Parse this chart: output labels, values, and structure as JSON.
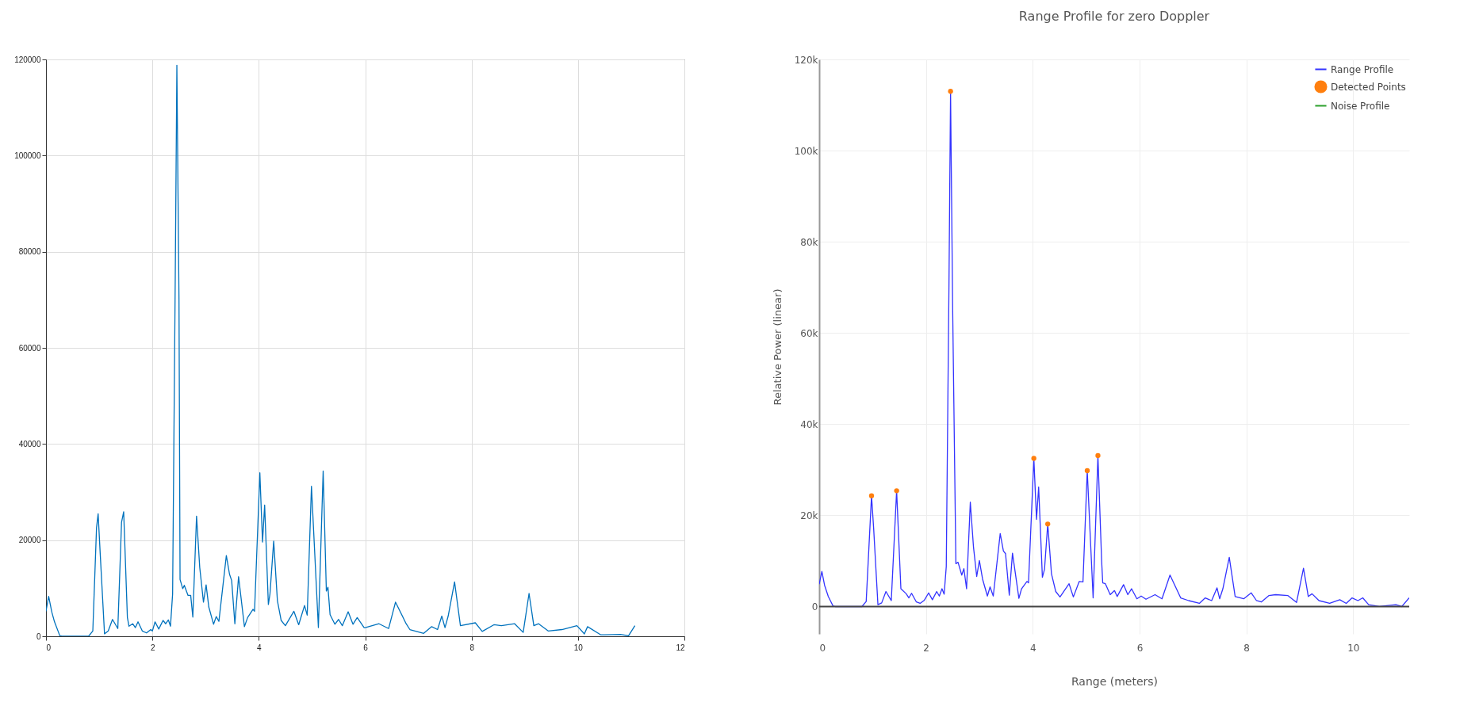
{
  "chart_data": [
    {
      "type": "line",
      "xlim": [
        0,
        12
      ],
      "ylim": [
        0,
        120000
      ],
      "xticks": [
        0,
        2,
        4,
        6,
        8,
        10,
        12
      ],
      "yticks": [
        0,
        20000,
        40000,
        60000,
        80000,
        100000,
        120000
      ],
      "grid": true,
      "series": [
        {
          "color": "#0072bd",
          "x": [
            0,
            0.05,
            0.11,
            0.16,
            0.26,
            0.3,
            0.8,
            0.88,
            0.95,
            0.98,
            1.02,
            1.1,
            1.17,
            1.25,
            1.35,
            1.42,
            1.46,
            1.53,
            1.56,
            1.63,
            1.68,
            1.73,
            1.81,
            1.89,
            1.97,
            2.0,
            2.05,
            2.12,
            2.2,
            2.25,
            2.3,
            2.34,
            2.38,
            2.43,
            2.46,
            2.5,
            2.52,
            2.57,
            2.6,
            2.67,
            2.72,
            2.76,
            2.83,
            2.89,
            2.96,
            3.01,
            3.06,
            3.15,
            3.2,
            3.25,
            3.39,
            3.45,
            3.49,
            3.55,
            3.62,
            3.73,
            3.79,
            3.89,
            3.92,
            4.02,
            4.07,
            4.11,
            4.18,
            4.21,
            4.28,
            4.35,
            4.42,
            4.5,
            4.66,
            4.75,
            4.86,
            4.91,
            4.99,
            5.12,
            5.21,
            5.27,
            5.3,
            5.34,
            5.43,
            5.5,
            5.57,
            5.68,
            5.77,
            5.85,
            5.98,
            6.0,
            6.26,
            6.44,
            6.57,
            6.77,
            6.84,
            7.1,
            7.25,
            7.36,
            7.44,
            7.5,
            7.56,
            7.68,
            7.79,
            8.07,
            8.2,
            8.42,
            8.56,
            8.81,
            8.97,
            9.08,
            9.17,
            9.26,
            9.44,
            9.7,
            9.98,
            10.12,
            10.18,
            10.43,
            10.8,
            10.95,
            11.07
          ],
          "values": [
            5200,
            8300,
            5000,
            3000,
            100,
            0,
            0,
            1100,
            22600,
            25500,
            17000,
            500,
            1100,
            3500,
            1600,
            23700,
            25900,
            3900,
            2100,
            2600,
            1800,
            3000,
            1100,
            700,
            1400,
            1100,
            3000,
            1500,
            3300,
            2600,
            3400,
            2100,
            8800,
            75000,
            118800,
            70000,
            11800,
            9900,
            10600,
            8500,
            8500,
            4000,
            25000,
            14300,
            7100,
            10700,
            6100,
            2500,
            4100,
            3100,
            16800,
            12900,
            11600,
            2600,
            12400,
            2000,
            3900,
            5600,
            5200,
            34000,
            19600,
            27300,
            6600,
            8800,
            19800,
            7400,
            3300,
            2200,
            5200,
            2400,
            6400,
            4400,
            31200,
            1800,
            34400,
            9400,
            10200,
            4500,
            2500,
            3500,
            2200,
            5100,
            2500,
            3900,
            1800,
            1800,
            2600,
            1600,
            7100,
            2600,
            1400,
            600,
            2000,
            1400,
            4200,
            1800,
            4200,
            11300,
            2200,
            2800,
            1000,
            2400,
            2200,
            2600,
            800,
            8900,
            2200,
            2600,
            1100,
            1400,
            2200,
            500,
            2000,
            300,
            400,
            100,
            2200
          ]
        }
      ]
    },
    {
      "type": "line",
      "title": "Range Profile for zero Doppler",
      "xlabel": "Range (meters)",
      "ylabel": "Relative Power (linear)",
      "xlim": [
        0,
        11.05
      ],
      "ylim": [
        -6000,
        120000
      ],
      "xticks": [
        0,
        2,
        4,
        6,
        8,
        10
      ],
      "yticks": [
        0,
        {
          "value": 20000,
          "label": "20k"
        },
        {
          "value": 40000,
          "label": "40k"
        },
        {
          "value": 60000,
          "label": "60k"
        },
        {
          "value": 80000,
          "label": "80k"
        },
        {
          "value": 100000,
          "label": "100k"
        },
        {
          "value": 120000,
          "label": "120k"
        }
      ],
      "grid": true,
      "legend": "top right",
      "ref_lines": [
        {
          "axis": "y",
          "value": 0,
          "color": "#444444"
        }
      ],
      "series": [
        {
          "name": "Range Profile",
          "color": "#3333ff",
          "x": [
            0,
            0.05,
            0.1,
            0.17,
            0.26,
            0.3,
            0.8,
            0.88,
            0.98,
            1.02,
            1.1,
            1.17,
            1.25,
            1.35,
            1.45,
            1.53,
            1.63,
            1.68,
            1.73,
            1.82,
            1.89,
            1.97,
            2.05,
            2.12,
            2.2,
            2.25,
            2.3,
            2.34,
            2.38,
            2.43,
            2.46,
            2.5,
            2.56,
            2.6,
            2.67,
            2.71,
            2.76,
            2.83,
            2.89,
            2.95,
            3.0,
            3.06,
            3.15,
            3.2,
            3.26,
            3.39,
            3.45,
            3.49,
            3.56,
            3.62,
            3.74,
            3.79,
            3.89,
            3.92,
            4.02,
            4.07,
            4.11,
            4.18,
            4.22,
            4.28,
            4.35,
            4.43,
            4.51,
            4.68,
            4.76,
            4.87,
            4.94,
            5.02,
            5.13,
            5.22,
            5.29,
            5.31,
            5.36,
            5.45,
            5.53,
            5.58,
            5.7,
            5.78,
            5.85,
            5.95,
            6.03,
            6.12,
            6.29,
            6.42,
            6.57,
            6.77,
            6.92,
            7.12,
            7.23,
            7.35,
            7.45,
            7.5,
            7.56,
            7.68,
            7.79,
            7.95,
            8.09,
            8.19,
            8.28,
            8.42,
            8.55,
            8.78,
            8.94,
            9.07,
            9.16,
            9.23,
            9.36,
            9.56,
            9.75,
            9.87,
            9.98,
            10.09,
            10.18,
            10.29,
            10.49,
            10.8,
            10.91,
            11.05
          ],
          "values": [
            4900,
            7700,
            4700,
            2200,
            100,
            0,
            0,
            1100,
            24300,
            17100,
            400,
            800,
            3300,
            1300,
            25400,
            3900,
            2800,
            1900,
            2900,
            1000,
            700,
            1400,
            3000,
            1500,
            3300,
            2300,
            3900,
            2700,
            8800,
            70000,
            113000,
            65000,
            9400,
            9700,
            6900,
            8300,
            3900,
            22900,
            13000,
            6600,
            10100,
            6000,
            2300,
            4300,
            2300,
            16000,
            12200,
            11600,
            2500,
            11700,
            1800,
            3900,
            5500,
            5200,
            32500,
            19100,
            26200,
            6400,
            8200,
            18100,
            7200,
            3300,
            2100,
            5000,
            2100,
            5500,
            5400,
            29800,
            1900,
            33100,
            9900,
            5200,
            5000,
            2600,
            3500,
            2200,
            4800,
            2600,
            3900,
            1700,
            2300,
            1600,
            2600,
            1700,
            6900,
            1900,
            1300,
            700,
            1900,
            1300,
            4100,
            1700,
            3900,
            10800,
            2200,
            1700,
            3000,
            1300,
            1000,
            2400,
            2600,
            2400,
            900,
            8400,
            2200,
            2800,
            1300,
            700,
            1500,
            700,
            1900,
            1300,
            1900,
            400,
            0,
            400,
            0,
            1900
          ]
        },
        {
          "name": "Detected Points",
          "type": "scatter",
          "marker": "circle",
          "color": "#ff7f0e",
          "x": [
            0.98,
            1.45,
            2.46,
            4.02,
            4.28,
            5.02,
            5.22
          ],
          "values": [
            24300,
            25400,
            113000,
            32500,
            18100,
            29800,
            33100
          ]
        },
        {
          "name": "Noise Profile",
          "color": "#2ca02c"
        }
      ]
    }
  ]
}
